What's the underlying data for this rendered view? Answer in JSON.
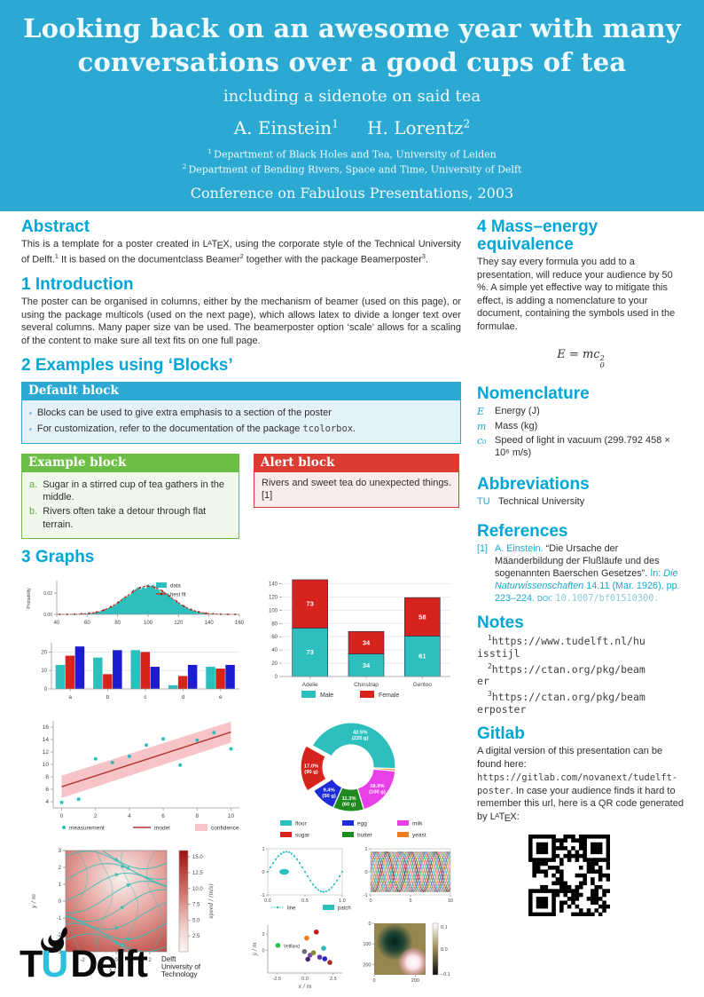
{
  "header": {
    "bg_color": "#2BA9D3",
    "title_line1": "Looking back on an awesome year with many",
    "title_line2": "conversations over a good cups of tea",
    "subtitle": "including a sidenote on said tea",
    "authors": [
      {
        "name": "A. Einstein",
        "sup": "1"
      },
      {
        "name": "H. Lorentz",
        "sup": "2"
      }
    ],
    "affiliations": [
      {
        "sup": "1",
        "text": "Department of Black Holes and Tea, University of Leiden"
      },
      {
        "sup": "2",
        "text": "Department of Bending Rivers, Space and Time, University of Delft"
      }
    ],
    "conference": "Conference on Fabulous Presentations, 2003"
  },
  "abstract": {
    "heading": "Abstract",
    "body": [
      {
        "t": "This is a template for a poster created in "
      },
      {
        "latex": true
      },
      {
        "t": ", using the corporate style of the Technical University of Delft."
      },
      {
        "sup": "1"
      },
      {
        "t": " It is based on the documentclass Beamer"
      },
      {
        "sup": "2"
      },
      {
        "t": " together with the package Beamerposter"
      },
      {
        "sup": "3"
      },
      {
        "t": "."
      }
    ]
  },
  "introduction": {
    "heading": "1 Introduction",
    "body": [
      {
        "t": "The poster can be organised in columns, either by the mechanism of beamer (used on this page), or using the package multicols (used on the next page), which allows latex to divide a longer text over several columns. Many paper size van be used. The beamerposter option ‘scale’ allows for a scaling of the content to make sure all text fits on one full page."
      }
    ]
  },
  "examples_heading": "2 Examples using ‘Blocks’",
  "blocks": {
    "default": {
      "title": "Default block",
      "items": [
        [
          {
            "t": "Blocks can be used to give extra emphasis to a section of the poster"
          }
        ],
        [
          {
            "t": "For customization, refer to the documentation of the package "
          },
          {
            "t": "tcolorbox",
            "mono": true
          },
          {
            "t": "."
          }
        ]
      ]
    },
    "example": {
      "title": "Example block",
      "items": [
        {
          "label": "a.",
          "text": "Sugar in a stirred cup of tea gathers in the middle."
        },
        {
          "label": "b.",
          "text": "Rivers often take a detour through flat terrain."
        }
      ]
    },
    "alert": {
      "title": "Alert block",
      "body": "Rivers and sweet tea do unexpected things.[1]"
    }
  },
  "graphs_heading": "3 Graphs",
  "mass_energy": {
    "heading": "4 Mass–energy equivalence",
    "body": [
      {
        "t": "They say every formula you add to a presentation, will reduce your audience by 50 %. A simple yet effective way to mitigate this effect, is adding a nomenclature to your document, containing the symbols used in the formulae."
      }
    ],
    "formula": {
      "lhs": "E",
      "eq": " = ",
      "rhs": "mc",
      "sup": "2",
      "sub": "0"
    }
  },
  "nomenclature": {
    "heading": "Nomenclature",
    "items": [
      {
        "sym": "E",
        "text": "Energy (J)"
      },
      {
        "sym": "m",
        "text": "Mass (kg)"
      },
      {
        "sym": "c₀",
        "text": "Speed of light in vacuum (299.792 458 × 10⁶ m/s)"
      }
    ]
  },
  "abbreviations": {
    "heading": "Abbreviations",
    "items": [
      {
        "abbr": "TU",
        "text": "Technical University"
      }
    ]
  },
  "references": {
    "heading": "References",
    "label": "[1]",
    "parts": [
      {
        "t": "A. Einstein. "
      },
      {
        "t": "“Die Ursache der Mäanderbildung der Flußläufe und des sogenannten Baerschen Gesetzes”. ",
        "c": "dark"
      },
      {
        "t": "In: "
      },
      {
        "t": "Die Naturwissenschaften",
        "i": true
      },
      {
        "t": " 14.11 (Mar. 1926), pp. 223–224. "
      },
      {
        "t": "doi:",
        "sc": true
      },
      {
        "t": " "
      },
      {
        "t": "10.1007/bf01510300.",
        "mono": true,
        "c": "pale"
      }
    ]
  },
  "notes": {
    "heading": "Notes",
    "items": [
      {
        "sup": "1",
        "url": "https://www.tudelft.nl/huisstijl"
      },
      {
        "sup": "2",
        "url": "https://ctan.org/pkg/beamer"
      },
      {
        "sup": "3",
        "url": "https://ctan.org/pkg/beamerposter"
      }
    ]
  },
  "gitlab": {
    "heading": "Gitlab",
    "body": [
      {
        "t": "A digital version of this presentation can be found here: "
      },
      {
        "t": "https://gitlab.com/novanext/tudelft-poster",
        "mono": true
      },
      {
        "t": ". In case your audience finds it hard to remember this url, here is a QR code generated by "
      },
      {
        "latex": true
      },
      {
        "t": ":"
      }
    ]
  },
  "logo": {
    "tu": "TU",
    "delft": "Delft",
    "tagline": [
      "Delft",
      "University of",
      "Technology"
    ],
    "accent": "#2BC1DC"
  },
  "chart_data": [
    {
      "id": "histogram_fit",
      "type": "area",
      "ylabel": "Probability",
      "x_ticks": [
        40,
        60,
        80,
        100,
        120,
        140,
        160
      ],
      "y_ticks": [
        "0.00",
        "0.02"
      ],
      "xlim": [
        40,
        160
      ],
      "ylim": [
        0,
        0.03
      ],
      "distribution": {
        "mean": 100,
        "sigma": 15,
        "peak": 0.0265
      },
      "legend": [
        {
          "label": "data",
          "color": "#2CBFBE",
          "kind": "patch"
        },
        {
          "label": "best fit",
          "color": "#CF2A1B",
          "kind": "line-dot"
        }
      ]
    },
    {
      "id": "grouped_bar",
      "type": "bar",
      "categories": [
        "a",
        "b",
        "c",
        "d",
        "e"
      ],
      "series": [
        {
          "color": "#2CBFBE",
          "values": [
            13,
            17,
            21,
            2,
            12
          ]
        },
        {
          "color": "#D7231D",
          "values": [
            18,
            8,
            20,
            7,
            11
          ]
        },
        {
          "color": "#1C1CD0",
          "values": [
            23,
            21,
            12,
            13,
            13
          ]
        }
      ],
      "y_ticks": [
        0,
        10,
        20
      ],
      "ylim": [
        0,
        25
      ]
    },
    {
      "id": "stacked_bar",
      "type": "bar",
      "stacked": true,
      "categories": [
        "Adelie",
        "Chinstrap",
        "Gentoo"
      ],
      "series": [
        {
          "name": "Male",
          "color": "#2CBFBE",
          "values": [
            73,
            34,
            61
          ]
        },
        {
          "name": "Female",
          "color": "#D7231D",
          "values": [
            73,
            34,
            58
          ]
        }
      ],
      "y_ticks": [
        0,
        20,
        40,
        60,
        80,
        100,
        120,
        140
      ],
      "ylim": [
        0,
        150
      ],
      "legend_position": "bottom"
    },
    {
      "id": "regression",
      "type": "scatter",
      "points": [
        [
          0,
          3.9
        ],
        [
          1,
          4.4
        ],
        [
          2,
          10.9
        ],
        [
          3,
          10.3
        ],
        [
          4,
          11.3
        ],
        [
          5,
          13.1
        ],
        [
          6,
          14.1
        ],
        [
          7,
          9.9
        ],
        [
          8,
          13.9
        ],
        [
          9,
          15.1
        ],
        [
          10,
          12.5
        ]
      ],
      "model": {
        "x": [
          0,
          10
        ],
        "y": [
          6.4,
          15.2
        ]
      },
      "confidence": {
        "x": [
          0,
          10
        ],
        "upper": [
          8.2,
          16.9
        ],
        "lower": [
          4.6,
          13.5
        ]
      },
      "x_ticks": [
        0,
        2,
        4,
        6,
        8,
        10
      ],
      "y_ticks": [
        4,
        6,
        8,
        10,
        12,
        14,
        16
      ],
      "legend": [
        "measurement",
        "model",
        "confidence"
      ],
      "colors": {
        "point": "#2CBFBE",
        "line": "#B23434",
        "band": "#F6C3C6"
      }
    },
    {
      "id": "ingredients_donut",
      "type": "pie",
      "donut": true,
      "slices": [
        {
          "label": "flour",
          "pct": 42.5,
          "grams": 225,
          "color": "#2CBFBE"
        },
        {
          "label": "sugar",
          "pct": 17.0,
          "grams": 90,
          "color": "#D7231D",
          "explode": true
        },
        {
          "label": "egg",
          "pct": 9.4,
          "grams": 50,
          "color": "#1C2CD8"
        },
        {
          "label": "butter",
          "pct": 11.3,
          "grams": 60,
          "color": "#1F8B1F"
        },
        {
          "label": "milk",
          "pct": 18.9,
          "grams": 100,
          "color": "#E93FE9"
        },
        {
          "label": "yeast",
          "pct": 0.9,
          "grams": 5,
          "color": "#F07D23"
        }
      ],
      "clockwise_order": [
        "yeast",
        "milk",
        "butter",
        "egg",
        "sugar",
        "flour"
      ],
      "legend_rows": [
        [
          "flour",
          "egg",
          "milk"
        ],
        [
          "sugar",
          "butter",
          "yeast"
        ]
      ]
    },
    {
      "id": "streamplot",
      "type": "heatmap",
      "subtype": "streamplot",
      "xlabel": "x / m",
      "ylabel": "y / m",
      "x_ticks": [
        -2,
        0,
        2
      ],
      "y_ticks": [
        3,
        2,
        1,
        0,
        -1,
        -2,
        -3
      ],
      "xlim": [
        -3,
        3
      ],
      "ylim": [
        -3,
        3
      ],
      "line_color": "#3FBDB2",
      "colorbar": {
        "label": "speed / (m/s)",
        "ticks": [
          2.5,
          5.0,
          7.5,
          10.0,
          12.5,
          15.0
        ],
        "min": 0,
        "max": 16,
        "color_high": "#9E120E",
        "color_low": "#FCF7F6"
      }
    },
    {
      "id": "sine_line_patch",
      "type": "line",
      "x_ticks": [
        "0.0",
        "0.5",
        "1.0"
      ],
      "y_ticks": [
        1,
        0,
        -1
      ],
      "line": {
        "label": "line",
        "color": "#2CBFBE"
      },
      "patch": {
        "label": "patch",
        "color": "#2CBFBE",
        "shape": "ellipse",
        "center": [
          0.22,
          0
        ]
      }
    },
    {
      "id": "colored_sines",
      "type": "line",
      "x_ticks": [
        0,
        5,
        10
      ],
      "y_ticks": [
        1,
        0,
        -1
      ],
      "n_lines": 18,
      "palette": [
        "#000000",
        "#d62728",
        "#1f77b4",
        "#2ca02c",
        "#e377c2",
        "#ff7f0e",
        "#17becf",
        "#9467bd",
        "#bcbd22",
        "#8c564b"
      ]
    },
    {
      "id": "random_scatter",
      "type": "scatter",
      "xlabel": "x / m",
      "ylabel": "y / m",
      "x_ticks": [
        "-2.5",
        "0.0",
        "2.5"
      ],
      "y_ticks": [
        0,
        2
      ],
      "annotation": "Vetfland",
      "points": [
        [
          -2.4,
          0.6,
          "#2DBE4E"
        ],
        [
          0.15,
          1.5,
          "#F07820"
        ],
        [
          1.0,
          2.25,
          "#CD1414"
        ],
        [
          1.65,
          0.25,
          "#2BB8B8"
        ],
        [
          2.2,
          -1.5,
          "#A03028"
        ],
        [
          1.75,
          -1.05,
          "#2424CC"
        ],
        [
          0.45,
          -0.6,
          "#7A4FA8"
        ],
        [
          -0.05,
          -0.15,
          "#6E6E6E"
        ],
        [
          0.25,
          -1.1,
          "#4A2878"
        ],
        [
          0.75,
          -0.3,
          "#8A8A30"
        ],
        [
          1.3,
          -0.85,
          "#5A3898"
        ]
      ]
    },
    {
      "id": "image_colorbar",
      "type": "heatmap",
      "x_ticks": [
        0,
        200
      ],
      "y_ticks": [
        0,
        100,
        200
      ],
      "colorbar_ticks": [
        "0.1",
        "0.0",
        "−0.1"
      ],
      "bg": "#968750"
    }
  ]
}
